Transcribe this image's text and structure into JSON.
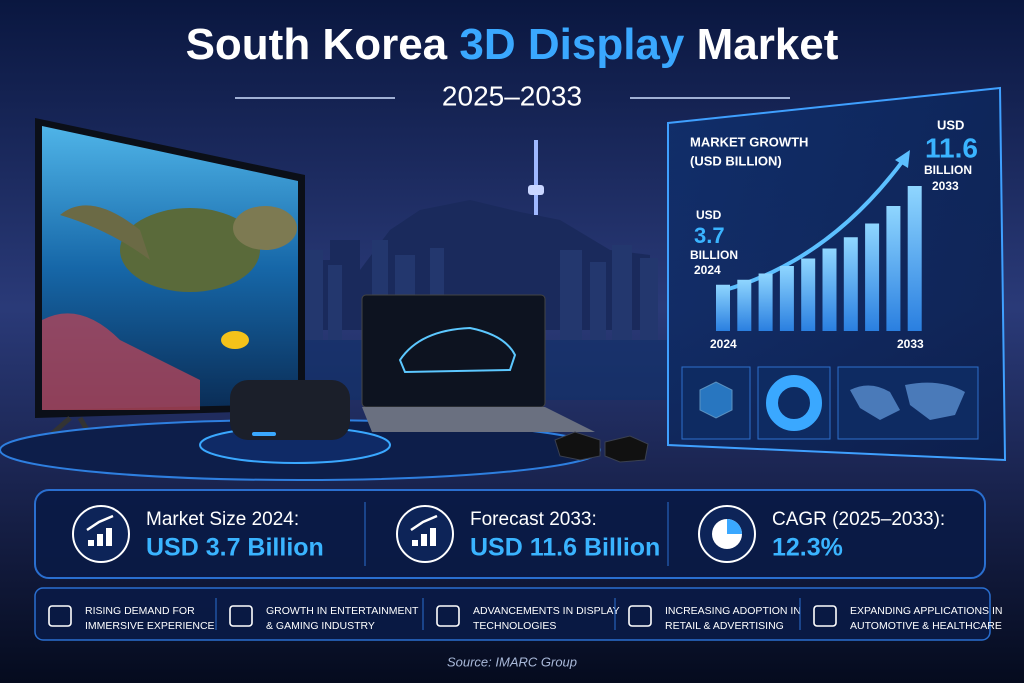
{
  "header": {
    "title_pre": "South Korea",
    "title_highlight": "3D Display",
    "title_post": "Market",
    "years": "2025–2033"
  },
  "growth_panel": {
    "title_lines": [
      "MARKET GROWTH",
      "(USD BILLION)"
    ],
    "start": {
      "currency": "USD",
      "value": 3.7,
      "unit": "BILLION",
      "year": "2024"
    },
    "end": {
      "currency": "USD",
      "value": 11.6,
      "unit": "BILLION",
      "year": "2033"
    },
    "x_start_label": "2024",
    "x_end_label": "2033",
    "bars": [
      3.7,
      4.1,
      4.6,
      5.2,
      5.8,
      6.6,
      7.5,
      8.6,
      10.0,
      11.6
    ]
  },
  "stats": [
    {
      "label": "Market Size 2024:",
      "value": "USD 3.7 Billion"
    },
    {
      "label": "Forecast 2033:",
      "value": "USD 11.6 Billion"
    },
    {
      "label": "CAGR (2025–2033):",
      "value": "12.3%"
    }
  ],
  "drivers": [
    [
      "RISING DEMAND FOR",
      "IMMERSIVE EXPERIENCE"
    ],
    [
      "GROWTH IN ENTERTAINMENT",
      "& GAMING INDUSTRY"
    ],
    [
      "ADVANCEMENTS IN DISPLAY",
      "TECHNOLOGIES"
    ],
    [
      "INCREASING ADOPTION IN",
      "RETAIL & ADVERTISING"
    ],
    [
      "EXPANDING APPLICATIONS IN",
      "AUTOMOTIVE & HEALTHCARE"
    ]
  ],
  "source": "Source: IMARC Group"
}
